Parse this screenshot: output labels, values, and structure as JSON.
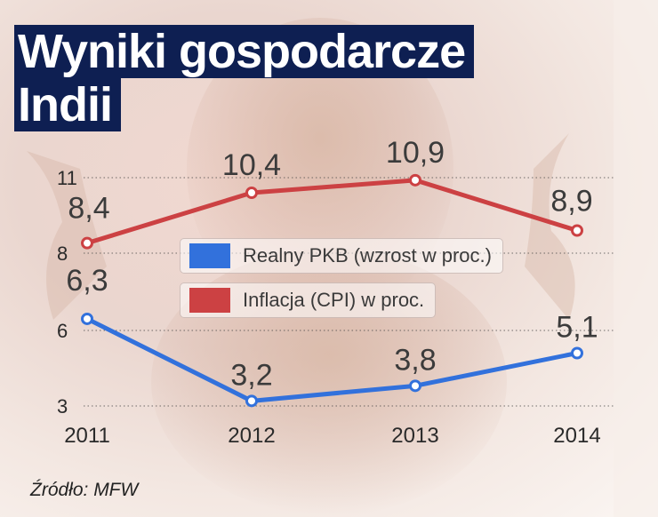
{
  "title": [
    "Wyniki gospodarcze",
    "Indii"
  ],
  "source": "Źródło: MFW",
  "colors": {
    "gdp": "#3271dc",
    "cpi": "#cc4143",
    "title_bg": "#0e1f52"
  },
  "chart_data": {
    "type": "line",
    "categories": [
      "2011",
      "2012",
      "2013",
      "2014"
    ],
    "y_ticks": [
      "3",
      "6",
      "8",
      "11"
    ],
    "ylim": [
      3,
      11
    ],
    "grid": true,
    "legend_position": "center",
    "series": [
      {
        "name": "Realny PKB (wzrost w proc.)",
        "color": "#3271dc",
        "values": [
          6.3,
          3.2,
          3.8,
          5.1
        ],
        "labels": [
          "6,3",
          "3,2",
          "3,8",
          "5,1"
        ]
      },
      {
        "name": "Inflacja (CPI) w proc.",
        "color": "#cc4143",
        "values": [
          8.4,
          10.4,
          10.9,
          8.9
        ],
        "labels": [
          "8,4",
          "10,4",
          "10,9",
          "8,9"
        ]
      }
    ]
  }
}
